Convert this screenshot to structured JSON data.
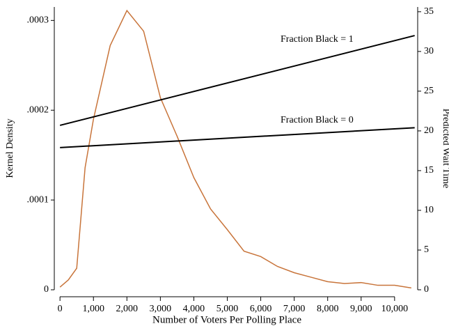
{
  "chart_data": {
    "type": "line",
    "x_label": "Number of Voters Per Polling Place",
    "y_label": "Kernel Density",
    "y2_label": "Predicted Wait Time",
    "xlim": [
      -170,
      10690
    ],
    "xticks": [
      0,
      {
        "value": 1000,
        "label": "1,000"
      },
      {
        "value": 2000,
        "label": "2,000"
      },
      {
        "value": 3000,
        "label": "3,000"
      },
      {
        "value": 4000,
        "label": "4,000"
      },
      {
        "value": 5000,
        "label": "5,000"
      },
      {
        "value": 6000,
        "label": "6,000"
      },
      {
        "value": 7000,
        "label": "7,000"
      },
      {
        "value": 8000,
        "label": "8,000"
      },
      {
        "value": 9000,
        "label": "9,000"
      },
      {
        "value": 10000,
        "label": "10,000"
      }
    ],
    "ylim": [
      0,
      0.000315
    ],
    "yticks": [
      0,
      {
        "value": 0.0001,
        "label": ".0001"
      },
      {
        "value": 0.0002,
        "label": ".0002"
      },
      {
        "value": 0.0003,
        "label": ".0003"
      }
    ],
    "y2lim": [
      0,
      35.6
    ],
    "y2ticks": [
      0,
      5,
      10,
      15,
      20,
      25,
      30,
      35
    ],
    "series": [
      {
        "color": "#c8743a",
        "x": [
          0,
          250,
          500,
          750,
          1000,
          1500,
          2000,
          2500,
          3000,
          3500,
          4000,
          4500,
          5000,
          5500,
          6000,
          6500,
          7000,
          7500,
          8000,
          8500,
          9000,
          9500,
          10000,
          10500
        ],
        "values": [
          3e-06,
          1.1e-05,
          2.4e-05,
          0.000136,
          0.00019,
          0.000272,
          0.000311,
          0.000288,
          0.000214,
          0.000171,
          0.000125,
          9e-05,
          6.7e-05,
          4.3e-05,
          3.7e-05,
          2.6e-05,
          1.9e-05,
          1.4e-05,
          9e-06,
          7e-06,
          8e-06,
          5e-06,
          5e-06,
          2e-06
        ]
      },
      {
        "color": "#000000",
        "axis": "y2",
        "x": [
          0,
          10600
        ],
        "values": [
          20.7,
          32.0
        ]
      },
      {
        "color": "#000000",
        "axis": "y2",
        "x": [
          0,
          10600
        ],
        "values": [
          17.9,
          20.4
        ]
      }
    ],
    "annotations": [
      {
        "text": "Fraction Black = 1",
        "color": "#c8743a"
      },
      {
        "text": "Fraction Black = 0",
        "color": "#c8743a"
      }
    ]
  }
}
